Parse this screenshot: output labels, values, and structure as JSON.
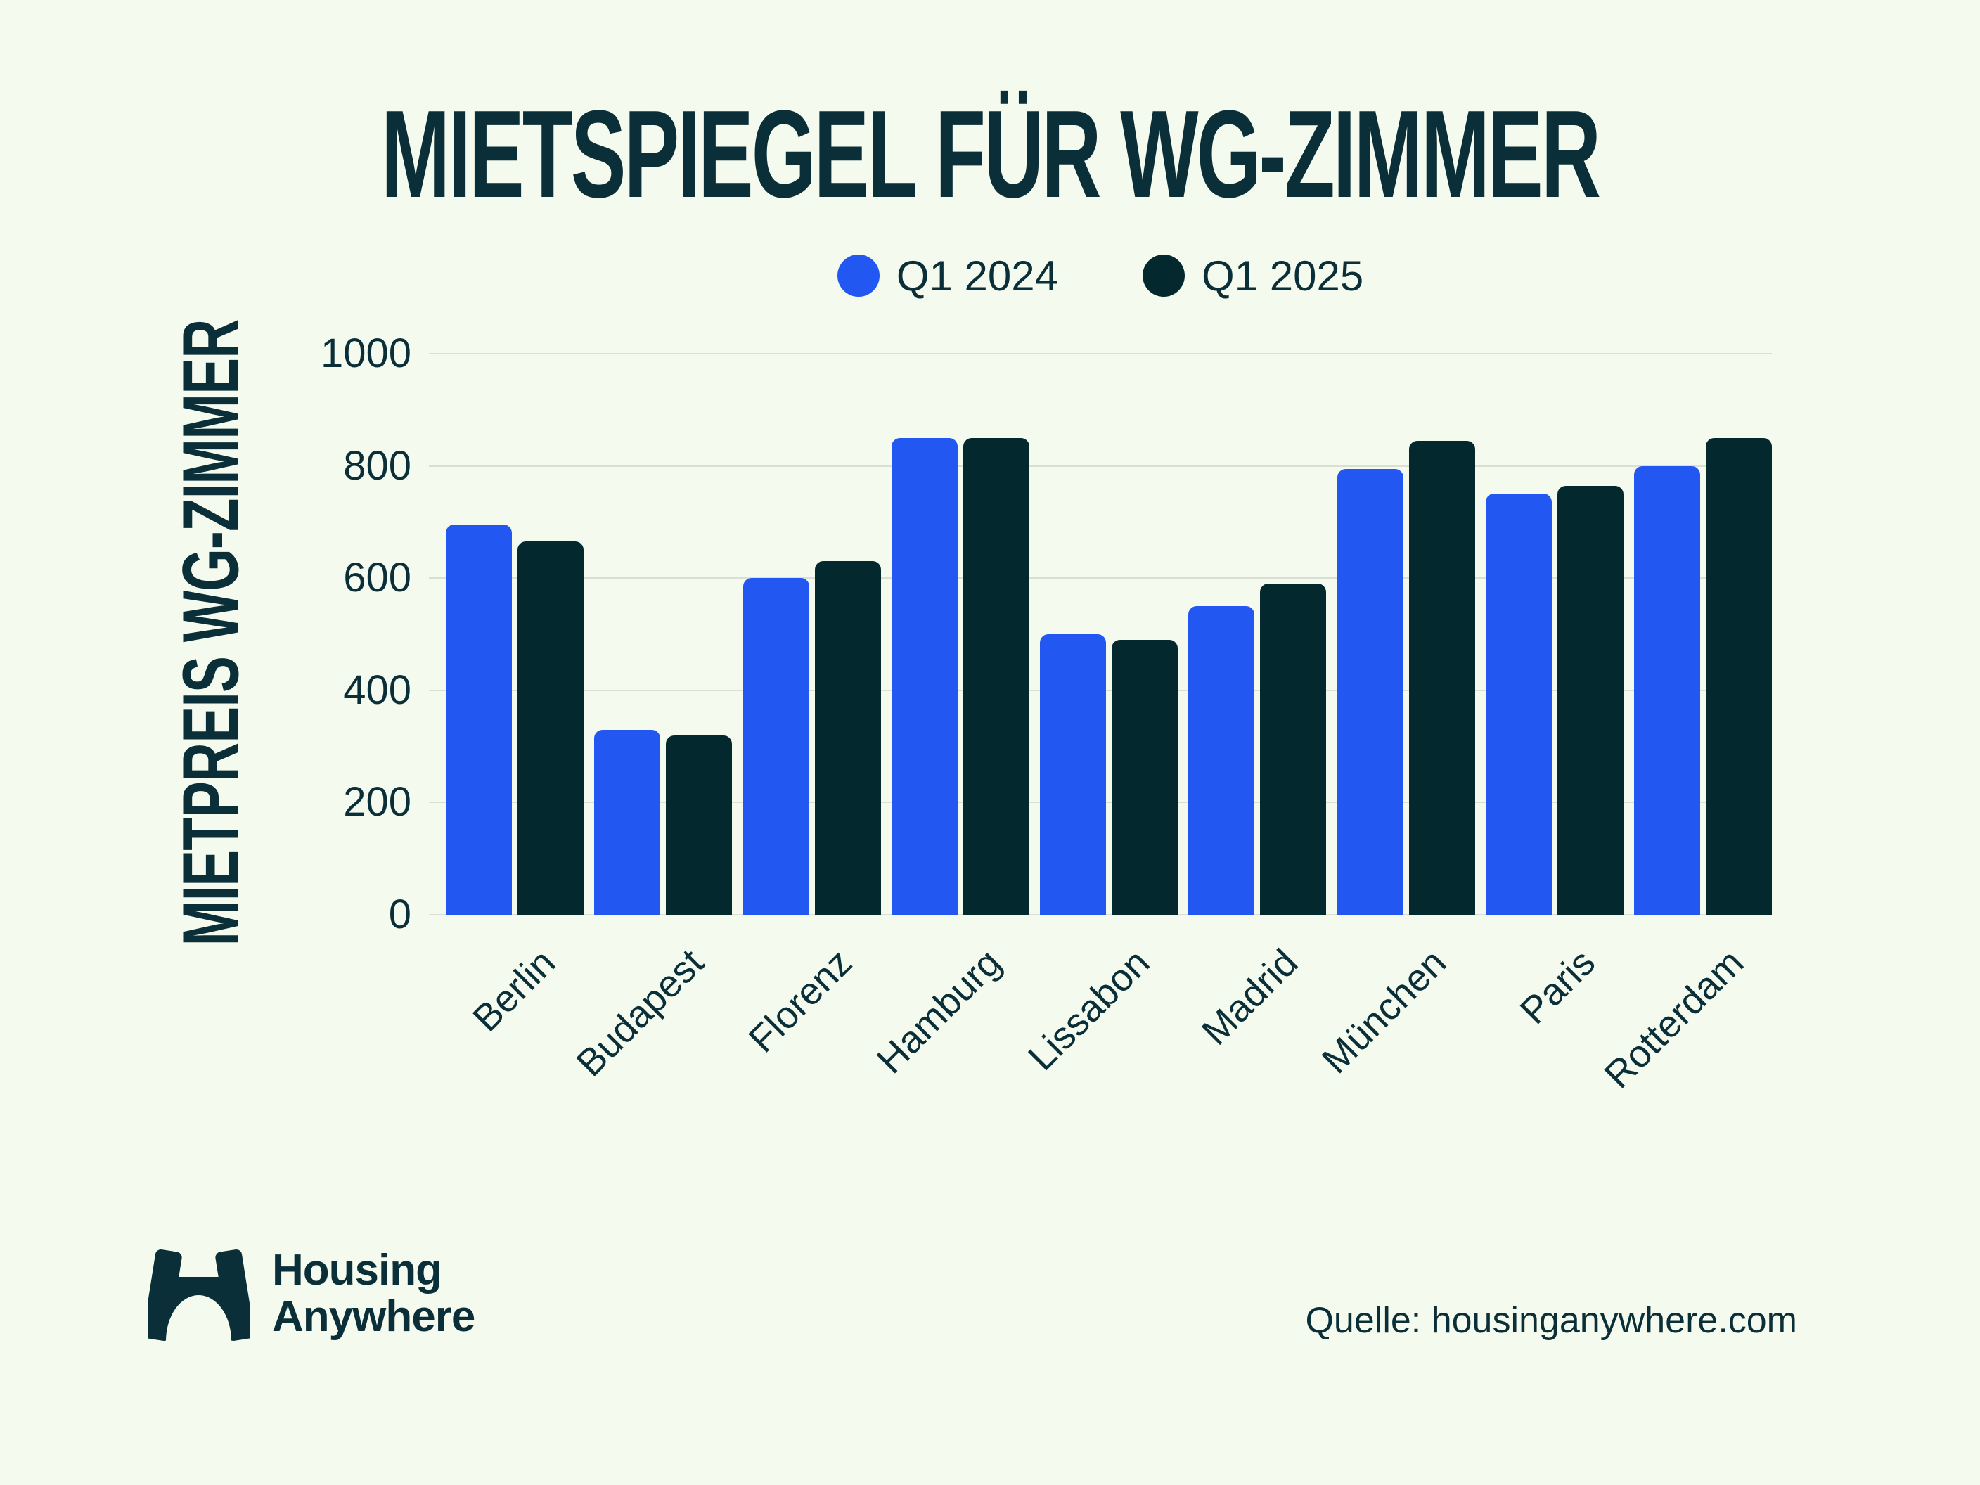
{
  "chart": {
    "title": "MIETSPIEGEL FÜR WG-ZIMMER",
    "y_axis_title": "MIETPREIS WG-ZIMMER"
  },
  "legend": [
    {
      "label": "Q1 2024",
      "color": "#2357F2"
    },
    {
      "label": "Q1 2025",
      "color": "#03282E"
    }
  ],
  "chart_data": {
    "type": "bar",
    "title": "MIETSPIEGEL FÜR WG-ZIMMER",
    "xlabel": "",
    "ylabel": "MIETPREIS WG-ZIMMER",
    "categories": [
      "Berlin",
      "Budapest",
      "Florenz",
      "Hamburg",
      "Lissabon",
      "Madrid",
      "München",
      "Paris",
      "Rotterdam"
    ],
    "series": [
      {
        "name": "Q1 2024",
        "color": "#2357F2",
        "values": [
          695,
          330,
          600,
          850,
          500,
          550,
          795,
          750,
          800
        ]
      },
      {
        "name": "Q1 2025",
        "color": "#03282E",
        "values": [
          665,
          320,
          630,
          850,
          490,
          590,
          845,
          765,
          850
        ]
      }
    ],
    "ylim": [
      0,
      1000
    ],
    "y_ticks": [
      1000,
      800,
      600,
      400,
      200,
      0
    ],
    "grid": true,
    "legend_position": "top-center"
  },
  "footer": {
    "logo_line1": "Housing",
    "logo_line2": "Anywhere",
    "source": "Quelle: housinganywhere.com"
  },
  "colors": {
    "background": "#F4FAED",
    "ink": "#0B2F38",
    "grid": "#D9DFD2",
    "series_2024": "#2357F2",
    "series_2025": "#03282E"
  }
}
